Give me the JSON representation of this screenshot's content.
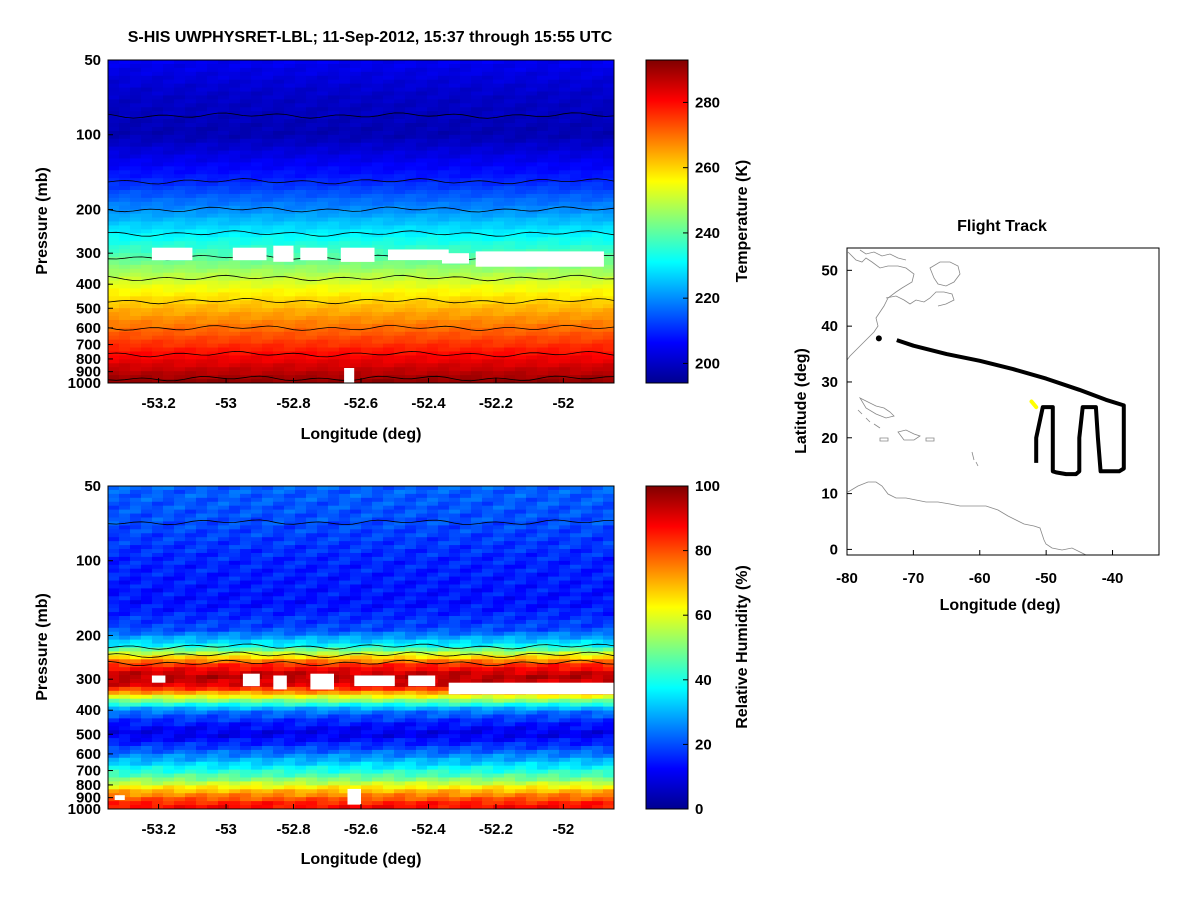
{
  "figure": {
    "title": "S-HIS UWPHYSRET-LBL;   11-Sep-2012, 15:37 through 15:55 UTC"
  },
  "colors": {
    "contour": "#000000",
    "missing": "#ffffff",
    "flight_path": "#000000",
    "flight_current": "#ffff00",
    "coastline": "#888888",
    "colormap": "jet"
  },
  "chart_data": [
    {
      "type": "heatmap",
      "id": "temperature",
      "title": "",
      "xlabel": "Longitude (deg)",
      "ylabel": "Pressure (mb)",
      "xlim": [
        -53.35,
        -51.85
      ],
      "ylim": [
        1000,
        50
      ],
      "y_scale": "log",
      "x_ticks": [
        -53.2,
        -53,
        -52.8,
        -52.6,
        -52.4,
        -52.2,
        -52
      ],
      "x_tick_labels": [
        "-53.2",
        "-53",
        "-52.8",
        "-52.6",
        "-52.4",
        "-52.2",
        "-52"
      ],
      "y_ticks": [
        50,
        100,
        200,
        300,
        400,
        500,
        600,
        700,
        800,
        900,
        1000
      ],
      "y_tick_labels": [
        "50",
        "100",
        "200",
        "300",
        "400",
        "500",
        "600",
        "700",
        "800",
        "900",
        "1000"
      ],
      "colorbar": {
        "label": "Temperature (K)",
        "range": [
          194,
          293
        ],
        "ticks": [
          200,
          220,
          240,
          260,
          280
        ],
        "tick_labels": [
          "200",
          "220",
          "240",
          "260",
          "280"
        ]
      },
      "profile": {
        "pressure": [
          50,
          70,
          100,
          150,
          200,
          250,
          300,
          400,
          500,
          600,
          700,
          800,
          900,
          1000
        ],
        "value": [
          205,
          201,
          199,
          209,
          220,
          230,
          238,
          253,
          263,
          270,
          276,
          282,
          287,
          292
        ]
      },
      "missing_regions": [
        {
          "x": [
            -53.22,
            -53.1
          ],
          "p": [
            285,
            320
          ]
        },
        {
          "x": [
            -52.98,
            -52.88
          ],
          "p": [
            285,
            320
          ]
        },
        {
          "x": [
            -52.86,
            -52.8
          ],
          "p": [
            280,
            325
          ]
        },
        {
          "x": [
            -52.78,
            -52.7
          ],
          "p": [
            285,
            320
          ]
        },
        {
          "x": [
            -52.66,
            -52.56
          ],
          "p": [
            285,
            325
          ]
        },
        {
          "x": [
            -52.52,
            -52.34
          ],
          "p": [
            290,
            320
          ]
        },
        {
          "x": [
            -52.36,
            -52.28
          ],
          "p": [
            300,
            330
          ]
        },
        {
          "x": [
            -52.26,
            -51.88
          ],
          "p": [
            295,
            340
          ]
        },
        {
          "x": [
            -52.65,
            -52.62
          ],
          "p": [
            870,
            1000
          ]
        }
      ]
    },
    {
      "type": "heatmap",
      "id": "relative_humidity",
      "title": "",
      "xlabel": "Longitude (deg)",
      "ylabel": "Pressure (mb)",
      "xlim": [
        -53.35,
        -51.85
      ],
      "ylim": [
        1000,
        50
      ],
      "y_scale": "log",
      "x_ticks": [
        -53.2,
        -53,
        -52.8,
        -52.6,
        -52.4,
        -52.2,
        -52
      ],
      "x_tick_labels": [
        "-53.2",
        "-53",
        "-52.8",
        "-52.6",
        "-52.4",
        "-52.2",
        "-52"
      ],
      "y_ticks": [
        50,
        100,
        200,
        300,
        400,
        500,
        600,
        700,
        800,
        900,
        1000
      ],
      "y_tick_labels": [
        "50",
        "100",
        "200",
        "300",
        "400",
        "500",
        "600",
        "700",
        "800",
        "900",
        "1000"
      ],
      "colorbar": {
        "label": "Relative Humidity (%)",
        "range": [
          0,
          100
        ],
        "ticks": [
          0,
          20,
          40,
          60,
          80,
          100
        ],
        "tick_labels": [
          "0",
          "20",
          "40",
          "60",
          "80",
          "100"
        ]
      },
      "profile": {
        "pressure": [
          50,
          70,
          100,
          150,
          190,
          220,
          260,
          290,
          320,
          360,
          400,
          450,
          500,
          560,
          650,
          750,
          850,
          950,
          1000
        ],
        "value": [
          22,
          20,
          16,
          14,
          20,
          38,
          82,
          95,
          90,
          55,
          25,
          15,
          10,
          18,
          32,
          48,
          70,
          85,
          88
        ]
      },
      "missing_regions": [
        {
          "x": [
            -53.22,
            -53.18
          ],
          "p": [
            290,
            310
          ]
        },
        {
          "x": [
            -52.95,
            -52.9
          ],
          "p": [
            285,
            320
          ]
        },
        {
          "x": [
            -52.86,
            -52.82
          ],
          "p": [
            290,
            330
          ]
        },
        {
          "x": [
            -52.75,
            -52.68
          ],
          "p": [
            285,
            330
          ]
        },
        {
          "x": [
            -52.62,
            -52.5
          ],
          "p": [
            290,
            320
          ]
        },
        {
          "x": [
            -52.46,
            -52.38
          ],
          "p": [
            290,
            320
          ]
        },
        {
          "x": [
            -52.34,
            -51.85
          ],
          "p": [
            310,
            345
          ]
        },
        {
          "x": [
            -52.64,
            -52.6
          ],
          "p": [
            830,
            960
          ]
        },
        {
          "x": [
            -53.33,
            -53.3
          ],
          "p": [
            880,
            920
          ]
        }
      ]
    },
    {
      "type": "line",
      "id": "flight_track",
      "title": "Flight Track",
      "xlabel": "Longitude (deg)",
      "ylabel": "Latitude (deg)",
      "xlim": [
        -80,
        -33
      ],
      "ylim": [
        -1,
        54
      ],
      "x_ticks": [
        -80,
        -70,
        -60,
        -50,
        -40
      ],
      "x_tick_labels": [
        "-80",
        "-70",
        "-60",
        "-50",
        "-40"
      ],
      "y_ticks": [
        0,
        10,
        20,
        30,
        40,
        50
      ],
      "y_tick_labels": [
        "0",
        "10",
        "20",
        "30",
        "40",
        "50"
      ],
      "series": [
        {
          "x": [
            -72.5,
            -70.0,
            -65.0,
            -60.0,
            -55.0,
            -50.0,
            -45.0,
            -41.0,
            -38.3,
            -38.3,
            -38.3,
            -39.0,
            -40.5,
            -41.8,
            -42.2,
            -42.5,
            -43.5,
            -44.5,
            -45.0,
            -45.0,
            -45.5,
            -47.0,
            -48.5,
            -49.0,
            -49.0,
            -49.0,
            -49.5,
            -50.5,
            -51.5,
            -51.5
          ],
          "y": [
            37.5,
            36.5,
            35.0,
            33.8,
            32.3,
            30.6,
            28.6,
            26.8,
            25.8,
            20.0,
            14.5,
            14.0,
            14.0,
            14.0,
            20.0,
            25.5,
            25.5,
            25.5,
            20.0,
            14.0,
            13.5,
            13.5,
            13.8,
            14.0,
            20.0,
            25.5,
            25.5,
            25.5,
            20.0,
            15.5
          ]
        },
        {
          "x": [
            -52.2,
            -51.5
          ],
          "y": [
            26.5,
            25.5
          ]
        }
      ],
      "markers": [
        {
          "x": -75.2,
          "y": 37.8
        }
      ]
    }
  ]
}
